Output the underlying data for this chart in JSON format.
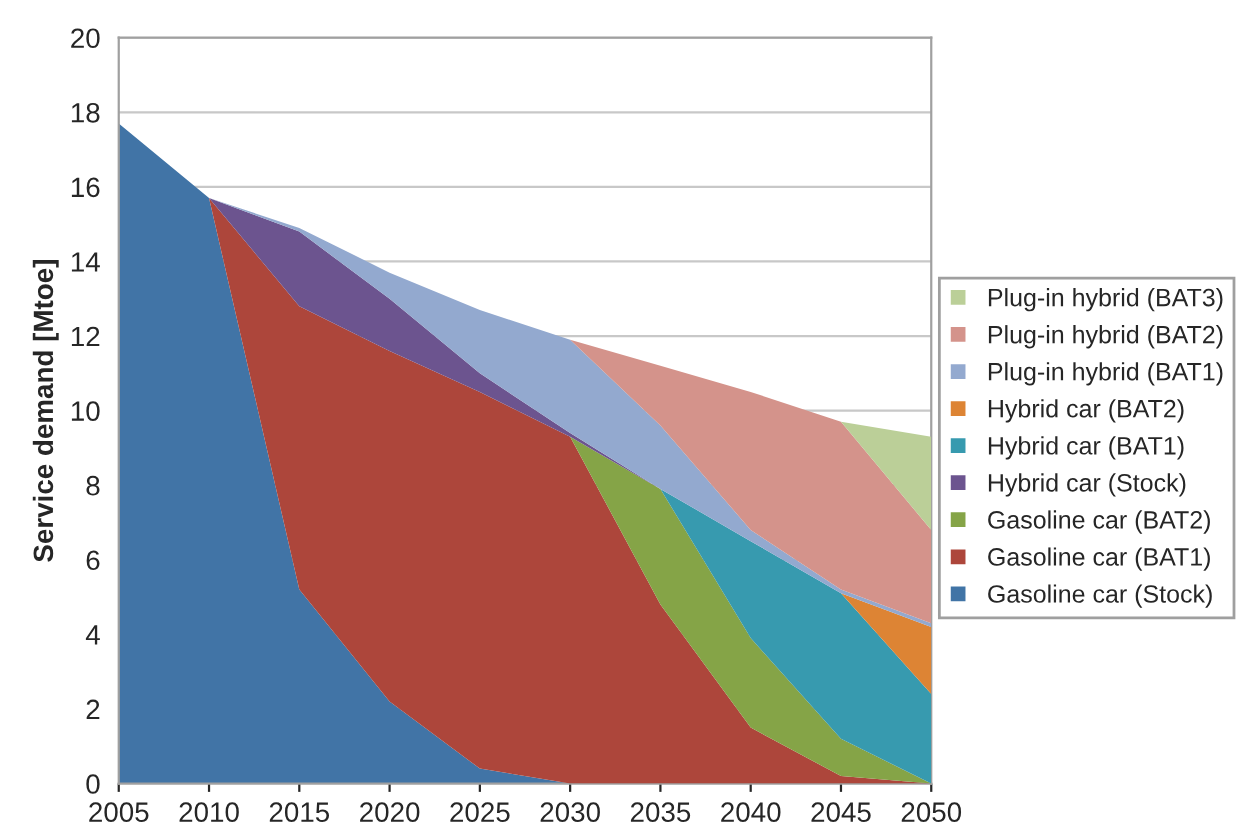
{
  "chart_data": {
    "type": "area",
    "stacked": true,
    "ylabel": "Service demand [Mtoe]",
    "x": [
      2005,
      2010,
      2015,
      2020,
      2025,
      2030,
      2035,
      2040,
      2045,
      2050
    ],
    "series": [
      {
        "name": "Gasoline car (Stock)",
        "color": "#4174a6",
        "values": [
          17.7,
          15.7,
          5.2,
          2.2,
          0.4,
          0,
          null,
          null,
          null,
          null
        ]
      },
      {
        "name": "Gasoline car (BAT1)",
        "color": "#ad463b",
        "values": [
          null,
          0,
          7.6,
          9.4,
          10.1,
          9.3,
          4.8,
          1.5,
          0.2,
          0
        ]
      },
      {
        "name": "Gasoline car (BAT2)",
        "color": "#85a447",
        "values": [
          null,
          null,
          null,
          null,
          null,
          0,
          3.1,
          2.4,
          1.0,
          0
        ]
      },
      {
        "name": "Hybrid car (Stock)",
        "color": "#6c548f",
        "values": [
          null,
          0,
          2.0,
          1.4,
          0.5,
          0.1,
          0,
          null,
          null,
          null
        ]
      },
      {
        "name": "Hybrid car (BAT1)",
        "color": "#379aaf",
        "values": [
          null,
          null,
          null,
          null,
          null,
          null,
          0,
          2.6,
          3.9,
          2.4
        ]
      },
      {
        "name": "Hybrid car (BAT2)",
        "color": "#dd8434",
        "values": [
          null,
          null,
          null,
          null,
          null,
          null,
          null,
          null,
          0,
          1.8
        ]
      },
      {
        "name": "Plug-in hybrid (BAT1)",
        "color": "#93a9cf",
        "values": [
          null,
          0,
          0.1,
          0.7,
          1.7,
          2.5,
          1.7,
          0.3,
          0.1,
          0.1
        ]
      },
      {
        "name": "Plug-in hybrid (BAT2)",
        "color": "#d4938b",
        "values": [
          null,
          null,
          null,
          null,
          null,
          0,
          1.6,
          3.7,
          4.5,
          2.5
        ]
      },
      {
        "name": "Plug-in hybrid (BAT3)",
        "color": "#bbcf98",
        "values": [
          null,
          null,
          null,
          null,
          null,
          null,
          null,
          null,
          0,
          2.5
        ]
      }
    ],
    "xlim": [
      2005,
      2050
    ],
    "xticks": [
      2005,
      2010,
      2015,
      2020,
      2025,
      2030,
      2035,
      2040,
      2045,
      2050
    ],
    "ylim": [
      0,
      20
    ],
    "yticks": [
      0,
      2,
      4,
      6,
      8,
      10,
      12,
      14,
      16,
      18,
      20
    ],
    "grid": "y",
    "legend": "right"
  }
}
